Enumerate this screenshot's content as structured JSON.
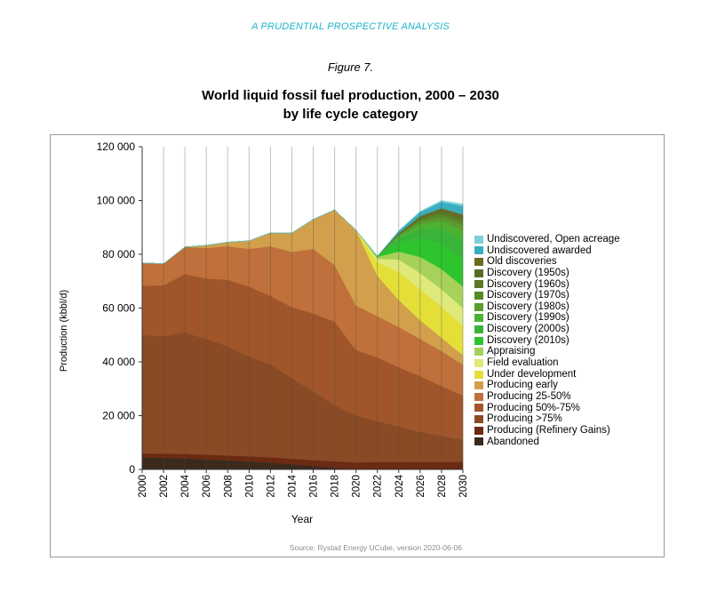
{
  "header": {
    "text": "A PRUDENTIAL PROSPECTIVE ANALYSIS"
  },
  "figure_label": "Figure 7.",
  "title_lines": [
    "World liquid fossil fuel production, 2000 – 2030",
    "by life cycle category"
  ],
  "source": "Source: Rystad Energy UCube, version 2020-06-06",
  "chart_data": {
    "type": "area",
    "stacked": true,
    "xlabel": "Year",
    "ylabel": "Production (kbbl/d)",
    "ylim": [
      0,
      120000
    ],
    "yticks": [
      0,
      20000,
      40000,
      60000,
      80000,
      100000,
      120000
    ],
    "ytick_labels": [
      "0",
      "20 000",
      "40 000",
      "60 000",
      "80 000",
      "100 000",
      "120 000"
    ],
    "xlim": [
      2000,
      2030
    ],
    "xticks": [
      2000,
      2002,
      2004,
      2006,
      2008,
      2010,
      2012,
      2014,
      2016,
      2018,
      2020,
      2022,
      2024,
      2026,
      2028,
      2030
    ],
    "grid_x": true,
    "legend_position": "right",
    "x": [
      2000,
      2002,
      2004,
      2006,
      2008,
      2010,
      2012,
      2014,
      2016,
      2018,
      2020,
      2022,
      2024,
      2026,
      2028,
      2030
    ],
    "series": [
      {
        "name": "Abandoned",
        "color": "#3a2a1e",
        "values": [
          4500,
          4300,
          4100,
          3700,
          3300,
          2900,
          2500,
          1900,
          1300,
          600,
          0,
          0,
          0,
          0,
          0,
          0
        ]
      },
      {
        "name": "Producing (Refinery Gains)",
        "color": "#6b2a12",
        "values": [
          1500,
          1600,
          1700,
          1800,
          1900,
          2000,
          2000,
          2100,
          2200,
          2400,
          2600,
          2800,
          2800,
          2800,
          2800,
          2800
        ]
      },
      {
        "name": "Producing >75%",
        "color": "#8a4a26",
        "values": [
          44000,
          43600,
          45200,
          43000,
          40600,
          37100,
          34500,
          30000,
          25500,
          21000,
          17400,
          15200,
          13200,
          11200,
          9700,
          8200
        ]
      },
      {
        "name": "Producing 50%-75%",
        "color": "#a0562a",
        "values": [
          18300,
          19000,
          21700,
          22500,
          24700,
          26000,
          25500,
          26400,
          29000,
          31000,
          24400,
          23700,
          22000,
          20700,
          18500,
          16500
        ]
      },
      {
        "name": "Producing 25-50%",
        "color": "#c0703a",
        "values": [
          8500,
          8000,
          10000,
          11300,
          12500,
          14000,
          18500,
          20500,
          24000,
          21000,
          16600,
          15300,
          15000,
          13800,
          13000,
          11500
        ]
      },
      {
        "name": "Producing early",
        "color": "#d2a04c",
        "values": [
          0,
          0,
          0,
          1000,
          1500,
          3000,
          5000,
          7000,
          11000,
          20500,
          28000,
          15000,
          10000,
          7000,
          5000,
          3500
        ]
      },
      {
        "name": "Under development",
        "color": "#e4df38",
        "values": [
          0,
          0,
          0,
          0,
          0,
          0,
          0,
          0,
          0,
          0,
          0,
          5000,
          10500,
          11500,
          11500,
          11000
        ]
      },
      {
        "name": "Field evaluation",
        "color": "#dfe97a",
        "values": [
          0,
          0,
          0,
          0,
          0,
          0,
          0,
          0,
          0,
          0,
          0,
          1300,
          4500,
          6000,
          6500,
          6500
        ]
      },
      {
        "name": "Appraising",
        "color": "#a6d25a",
        "values": [
          0,
          0,
          0,
          0,
          0,
          0,
          0,
          0,
          0,
          0,
          0,
          700,
          3000,
          6000,
          7500,
          8000
        ]
      },
      {
        "name": "Discovery (2010s)",
        "color": "#2ec42e",
        "values": [
          0,
          0,
          0,
          0,
          0,
          0,
          0,
          0,
          0,
          0,
          0,
          300,
          3500,
          7000,
          9500,
          10000
        ]
      },
      {
        "name": "Discovery (2000s)",
        "color": "#38b538",
        "values": [
          0,
          0,
          0,
          0,
          0,
          0,
          0,
          0,
          0,
          0,
          0,
          0,
          1500,
          3500,
          5500,
          7000
        ]
      },
      {
        "name": "Discovery (1990s)",
        "color": "#4cb332",
        "values": [
          0,
          0,
          0,
          0,
          0,
          0,
          0,
          0,
          0,
          0,
          0,
          0,
          700,
          1700,
          2800,
          3600
        ]
      },
      {
        "name": "Discovery (1980s)",
        "color": "#5a9c2e",
        "values": [
          0,
          0,
          0,
          0,
          0,
          0,
          0,
          0,
          0,
          0,
          0,
          0,
          400,
          1000,
          1600,
          2100
        ]
      },
      {
        "name": "Discovery (1970s)",
        "color": "#568a2a",
        "values": [
          0,
          0,
          0,
          0,
          0,
          0,
          0,
          0,
          0,
          0,
          0,
          0,
          300,
          700,
          1100,
          1400
        ]
      },
      {
        "name": "Discovery (1960s)",
        "color": "#5d7826",
        "values": [
          0,
          0,
          0,
          0,
          0,
          0,
          0,
          0,
          0,
          0,
          0,
          0,
          200,
          500,
          800,
          1000
        ]
      },
      {
        "name": "Discovery (1950s)",
        "color": "#576f22",
        "values": [
          0,
          0,
          0,
          0,
          0,
          0,
          0,
          0,
          0,
          0,
          0,
          0,
          100,
          300,
          500,
          700
        ]
      },
      {
        "name": "Old discoveries",
        "color": "#6d6a22",
        "values": [
          0,
          0,
          0,
          0,
          0,
          0,
          0,
          0,
          0,
          0,
          0,
          0,
          200,
          500,
          800,
          1000
        ]
      },
      {
        "name": "Undiscovered awarded",
        "color": "#3aaec0",
        "values": [
          0,
          0,
          0,
          0,
          0,
          0,
          0,
          0,
          0,
          0,
          0,
          0,
          800,
          1500,
          2400,
          3200
        ]
      },
      {
        "name": "Undiscovered, Open acreage",
        "color": "#7fd0d6",
        "values": [
          0,
          0,
          0,
          0,
          0,
          0,
          0,
          0,
          0,
          0,
          0,
          0,
          100,
          300,
          500,
          700
        ]
      }
    ]
  }
}
